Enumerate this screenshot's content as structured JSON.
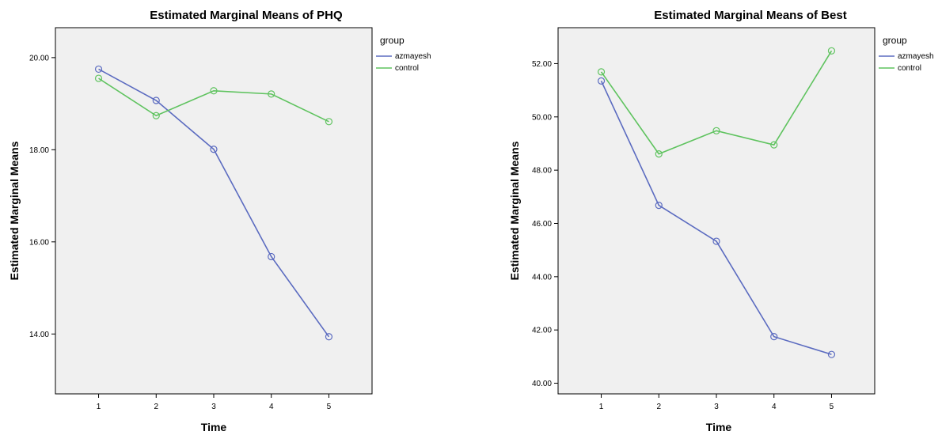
{
  "chart_data": [
    {
      "type": "line",
      "title": "Estimated Marginal Means of PHQ",
      "xlabel": "Time",
      "ylabel": "Estimated Marginal Means",
      "categories": [
        "1",
        "2",
        "3",
        "4",
        "5"
      ],
      "ylim": [
        12.7,
        20.65
      ],
      "yticks": [
        14.0,
        16.0,
        18.0,
        20.0
      ],
      "ytick_labels": [
        "14.00",
        "16.00",
        "18.00",
        "20.00"
      ],
      "grid": false,
      "legend": {
        "title": "group",
        "position": "right"
      },
      "series": [
        {
          "name": "azmayesh",
          "color": "#5b6bc0",
          "values": [
            19.75,
            19.07,
            18.01,
            15.68,
            13.94
          ]
        },
        {
          "name": "control",
          "color": "#5fc35f",
          "values": [
            19.55,
            18.74,
            19.28,
            19.21,
            18.61
          ]
        }
      ]
    },
    {
      "type": "line",
      "title": "Estimated Marginal Means of Best",
      "xlabel": "Time",
      "ylabel": "Estimated Marginal Means",
      "categories": [
        "1",
        "2",
        "3",
        "4",
        "5"
      ],
      "ylim": [
        39.6,
        53.35
      ],
      "yticks": [
        40.0,
        42.0,
        44.0,
        46.0,
        48.0,
        50.0,
        52.0
      ],
      "ytick_labels": [
        "40.00",
        "42.00",
        "44.00",
        "46.00",
        "48.00",
        "50.00",
        "52.00"
      ],
      "grid": false,
      "legend": {
        "title": "group",
        "position": "right"
      },
      "series": [
        {
          "name": "azmayesh",
          "color": "#5b6bc0",
          "values": [
            51.35,
            46.68,
            45.33,
            41.75,
            41.08
          ]
        },
        {
          "name": "control",
          "color": "#5fc35f",
          "values": [
            51.69,
            48.61,
            49.48,
            48.95,
            52.48
          ]
        }
      ]
    }
  ]
}
